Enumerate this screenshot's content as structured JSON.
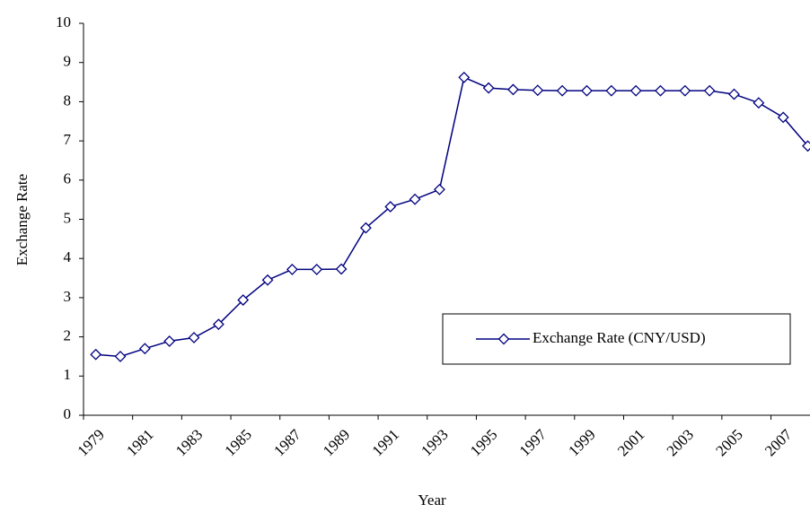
{
  "chart_data": {
    "type": "line",
    "x_label": "Year",
    "y_label": "Exchange Rate",
    "categories": [
      "1979",
      null,
      "1981",
      null,
      "1983",
      null,
      "1985",
      null,
      "1987",
      null,
      "1989",
      null,
      "1991",
      null,
      "1993",
      null,
      "1995",
      null,
      "1997",
      null,
      "1999",
      null,
      "2001",
      null,
      "2003",
      null,
      "2005",
      null,
      "2007",
      null
    ],
    "series": [
      {
        "name": "Exchange Rate (CNY/USD)",
        "color": "#000080",
        "values": [
          1.55,
          1.5,
          1.7,
          1.89,
          1.98,
          2.32,
          2.94,
          3.45,
          3.72,
          3.72,
          3.73,
          4.78,
          5.32,
          5.51,
          5.76,
          8.62,
          8.35,
          8.31,
          8.29,
          8.28,
          8.28,
          8.28,
          8.28,
          8.28,
          8.28,
          8.28,
          8.19,
          7.97,
          7.6,
          6.87
        ]
      }
    ],
    "ylim": [
      0,
      10
    ],
    "yticks": [
      0,
      1,
      2,
      3,
      4,
      5,
      6,
      7,
      8,
      9,
      10
    ],
    "grid": false,
    "legend": "right"
  }
}
